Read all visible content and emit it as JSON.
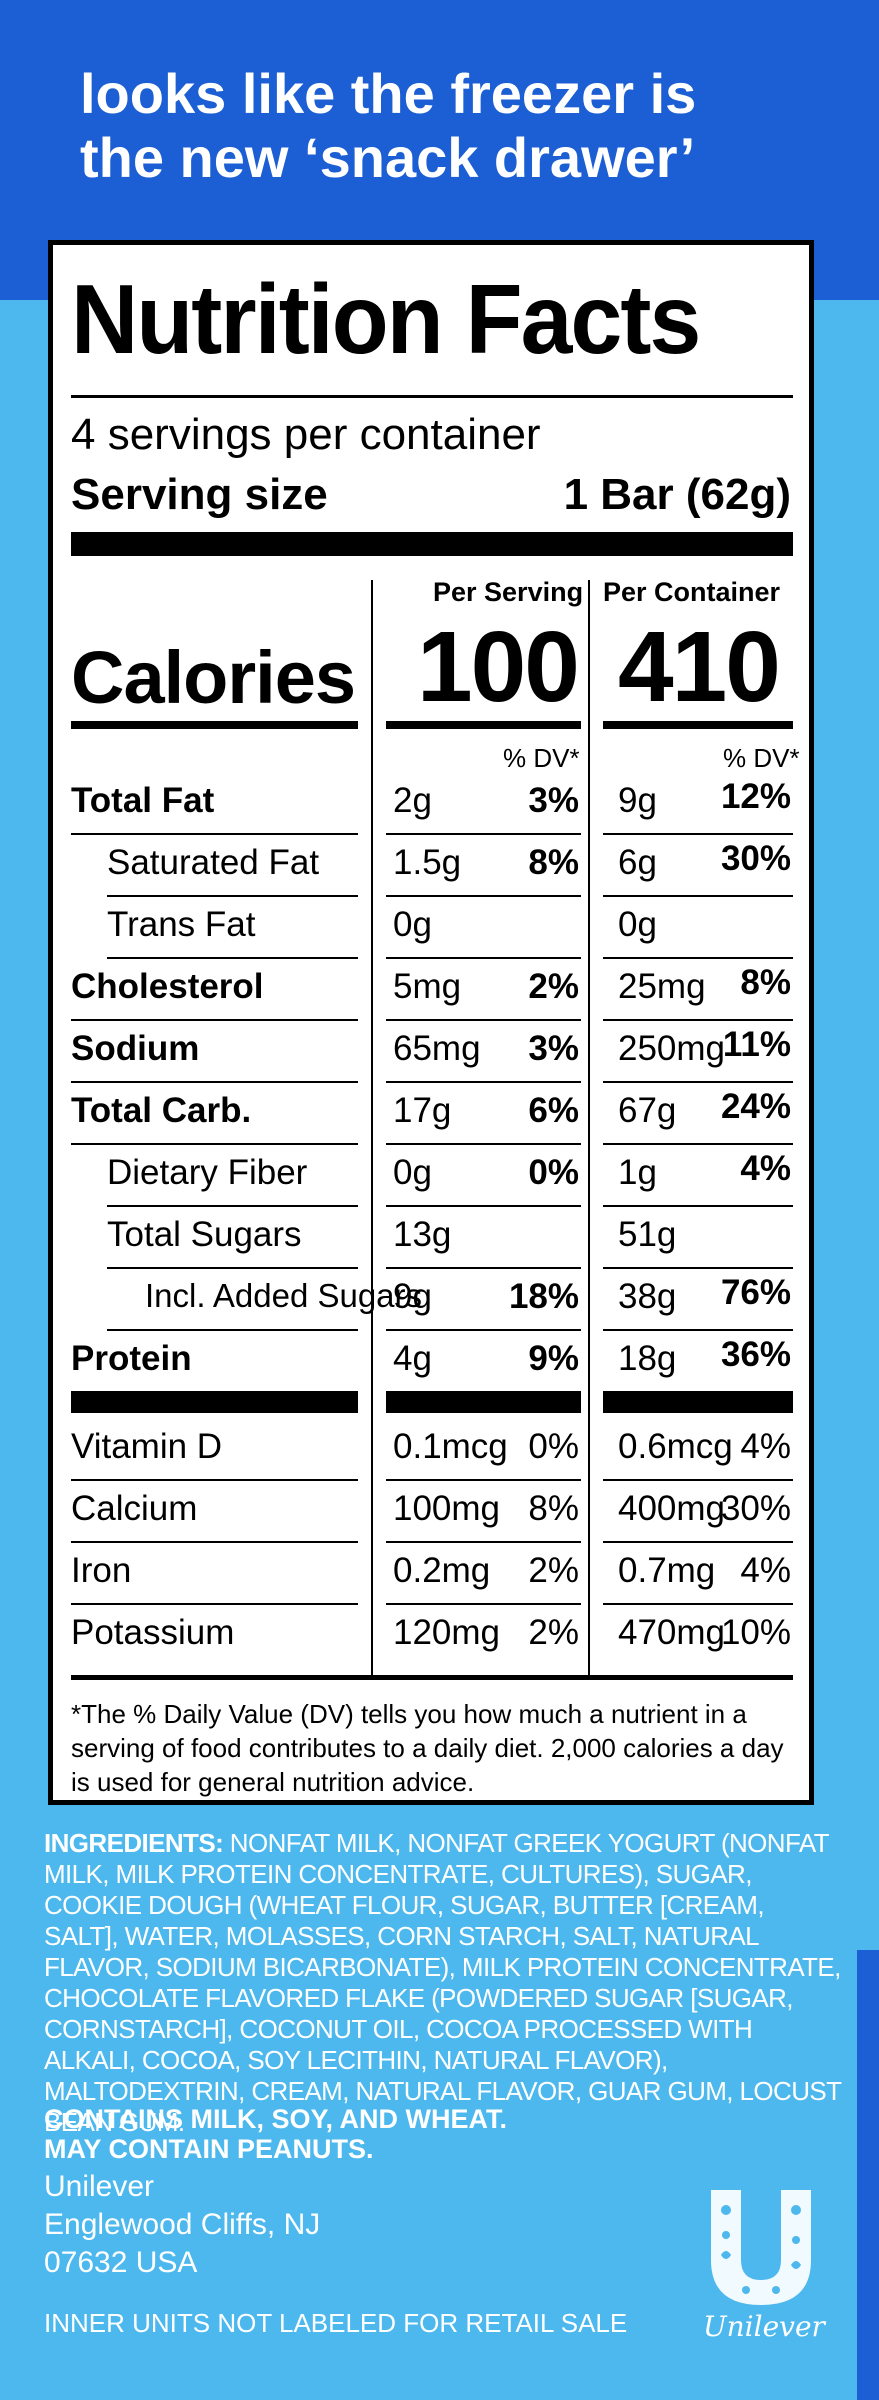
{
  "tagline": [
    "looks like the freezer is",
    "the new ‘snack drawer’"
  ],
  "title": "Nutrition Facts",
  "servings_per_container": "4 servings per container",
  "serving_size_label": "Serving size",
  "serving_size_value": "1 Bar (62g)",
  "columns": {
    "per_serving": "Per Serving",
    "per_container": "Per Container"
  },
  "calories": {
    "label": "Calories",
    "per_serving": "100",
    "per_container": "410"
  },
  "dv_header": "% DV*",
  "nutrients": [
    {
      "label": "Total Fat",
      "style": "bold",
      "s_amt": "2g",
      "s_pct": "3%",
      "c_amt": "9g",
      "c_pct": "12%"
    },
    {
      "label": "Saturated Fat",
      "style": "indent1",
      "s_amt": "1.5g",
      "s_pct": "8%",
      "c_amt": "6g",
      "c_pct": "30%"
    },
    {
      "label": "Trans Fat",
      "style": "indent1",
      "s_amt": "0g",
      "s_pct": "",
      "c_amt": "0g",
      "c_pct": ""
    },
    {
      "label": "Cholesterol",
      "style": "bold",
      "s_amt": "5mg",
      "s_pct": "2%",
      "c_amt": "25mg",
      "c_pct": "8%"
    },
    {
      "label": "Sodium",
      "style": "bold",
      "s_amt": "65mg",
      "s_pct": "3%",
      "c_amt": "250mg",
      "c_pct": "11%"
    },
    {
      "label": "Total Carb.",
      "style": "bold",
      "s_amt": "17g",
      "s_pct": "6%",
      "c_amt": "67g",
      "c_pct": "24%"
    },
    {
      "label": "Dietary Fiber",
      "style": "indent1",
      "s_amt": "0g",
      "s_pct": "0%",
      "c_amt": "1g",
      "c_pct": "4%"
    },
    {
      "label": "Total Sugars",
      "style": "indent1",
      "s_amt": "13g",
      "s_pct": "",
      "c_amt": "51g",
      "c_pct": ""
    },
    {
      "label": "Incl. Added Sugars",
      "style": "indent2",
      "s_amt": "9g",
      "s_pct": "18%",
      "c_amt": "38g",
      "c_pct": "76%"
    },
    {
      "label": "Protein",
      "style": "bold",
      "s_amt": "4g",
      "s_pct": "9%",
      "c_amt": "18g",
      "c_pct": "36%"
    }
  ],
  "vitamins": [
    {
      "label": "Vitamin D",
      "s_amt": "0.1mcg",
      "s_pct": "0%",
      "c_amt": "0.6mcg",
      "c_pct": "4%"
    },
    {
      "label": "Calcium",
      "s_amt": "100mg",
      "s_pct": "8%",
      "c_amt": "400mg",
      "c_pct": "30%"
    },
    {
      "label": "Iron",
      "s_amt": "0.2mg",
      "s_pct": "2%",
      "c_amt": "0.7mg",
      "c_pct": "4%"
    },
    {
      "label": "Potassium",
      "s_amt": "120mg",
      "s_pct": "2%",
      "c_amt": "470mg",
      "c_pct": "10%"
    }
  ],
  "footnote": "*The % Daily Value (DV) tells you how much a nutrient in a serving of food contributes to a daily diet. 2,000 calories a day is used for general nutrition advice.",
  "ingredients_label": "INGREDIENTS:",
  "ingredients_text": "NONFAT MILK, NONFAT GREEK YOGURT (NONFAT MILK, MILK PROTEIN CONCENTRATE, CULTURES), SUGAR, COOKIE DOUGH (WHEAT FLOUR, SUGAR, BUTTER [CREAM, SALT], WATER, MOLASSES, CORN STARCH, SALT, NATURAL FLAVOR, SODIUM BICARBONATE), MILK PROTEIN CONCENTRATE, CHOCOLATE FLAVORED FLAKE (POWDERED SUGAR [SUGAR, CORNSTARCH], COCONUT OIL, COCOA PROCESSED WITH ALKALI, COCOA, SOY LECITHIN, NATURAL FLAVOR), MALTODEXTRIN, CREAM, NATURAL FLAVOR, GUAR GUM, LOCUST BEAN GUM.",
  "contains": [
    "CONTAINS MILK, SOY, AND WHEAT.",
    "MAY CONTAIN PEANUTS."
  ],
  "address": [
    "Unilever",
    "Englewood Cliffs, NJ",
    "07632 USA"
  ],
  "inner_units": "INNER UNITS NOT LABELED FOR RETAIL SALE",
  "brand_logo_text": "Unilever",
  "colors": {
    "top_blue": "#1c5fd4",
    "light_blue": "#4cb8ee",
    "panel": "#ffffff",
    "ink": "#000000"
  }
}
